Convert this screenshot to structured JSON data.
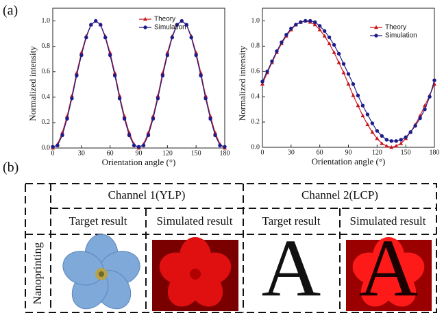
{
  "panel_labels": [
    "(a)",
    "(b)"
  ],
  "chart_data": [
    {
      "type": "line",
      "x_label": "Orientation angle (°)",
      "y_label": "Normalized intensity",
      "x": [
        0,
        5,
        10,
        15,
        20,
        25,
        30,
        35,
        40,
        45,
        50,
        55,
        60,
        65,
        70,
        75,
        80,
        85,
        90,
        95,
        100,
        105,
        110,
        115,
        120,
        125,
        130,
        135,
        140,
        145,
        150,
        155,
        160,
        165,
        170,
        175,
        180
      ],
      "series": [
        {
          "name": "Theory",
          "color": "#c8171e",
          "marker": "triangle",
          "values": [
            0,
            0.03,
            0.12,
            0.25,
            0.41,
            0.59,
            0.75,
            0.88,
            0.97,
            1,
            0.97,
            0.88,
            0.75,
            0.59,
            0.41,
            0.25,
            0.12,
            0.03,
            0,
            0.03,
            0.12,
            0.25,
            0.41,
            0.59,
            0.75,
            0.88,
            0.97,
            1,
            0.97,
            0.88,
            0.75,
            0.59,
            0.41,
            0.25,
            0.12,
            0.03,
            0
          ]
        },
        {
          "name": "Simulation",
          "color": "#1c1c8a",
          "marker": "circle",
          "values": [
            0.01,
            0.02,
            0.1,
            0.23,
            0.39,
            0.57,
            0.73,
            0.87,
            0.97,
            1,
            0.97,
            0.87,
            0.73,
            0.57,
            0.39,
            0.23,
            0.1,
            0.02,
            0.01,
            0.02,
            0.1,
            0.23,
            0.39,
            0.57,
            0.73,
            0.87,
            0.97,
            1,
            0.97,
            0.87,
            0.73,
            0.57,
            0.39,
            0.23,
            0.1,
            0.02,
            0.01
          ]
        }
      ],
      "xlim": [
        0,
        180
      ],
      "xticks": [
        0,
        30,
        60,
        90,
        120,
        150,
        180
      ],
      "ylim": [
        0,
        1.1
      ],
      "yticks": [
        {
          "value": 0,
          "label": "0.0"
        },
        0.2,
        0.4,
        0.6,
        0.8,
        {
          "value": 1,
          "label": "1.0"
        }
      ],
      "legend": "upper right"
    },
    {
      "type": "line",
      "x_label": "Orientation angle (°)",
      "y_label": "Normalized intensity",
      "x": [
        0,
        5,
        10,
        15,
        20,
        25,
        30,
        35,
        40,
        45,
        50,
        55,
        60,
        65,
        70,
        75,
        80,
        85,
        90,
        95,
        100,
        105,
        110,
        115,
        120,
        125,
        130,
        135,
        140,
        145,
        150,
        155,
        160,
        165,
        170,
        175,
        180
      ],
      "series": [
        {
          "name": "Theory",
          "color": "#c8171e",
          "marker": "triangle",
          "values": [
            0.5,
            0.59,
            0.67,
            0.75,
            0.82,
            0.88,
            0.93,
            0.97,
            0.99,
            1,
            0.99,
            0.97,
            0.93,
            0.88,
            0.82,
            0.75,
            0.67,
            0.59,
            0.5,
            0.41,
            0.33,
            0.25,
            0.18,
            0.12,
            0.07,
            0.03,
            0.01,
            0,
            0.01,
            0.03,
            0.07,
            0.12,
            0.18,
            0.25,
            0.33,
            0.41,
            0.5
          ]
        },
        {
          "name": "Simulation",
          "color": "#1c1c8a",
          "marker": "circle",
          "values": [
            0.52,
            0.6,
            0.68,
            0.76,
            0.83,
            0.89,
            0.94,
            0.97,
            0.99,
            1,
            1,
            0.99,
            0.96,
            0.92,
            0.87,
            0.81,
            0.74,
            0.66,
            0.58,
            0.5,
            0.41,
            0.33,
            0.26,
            0.19,
            0.13,
            0.09,
            0.06,
            0.05,
            0.05,
            0.06,
            0.08,
            0.12,
            0.17,
            0.23,
            0.3,
            0.4,
            0.53
          ]
        }
      ],
      "xlim": [
        0,
        180
      ],
      "xticks": [
        0,
        30,
        60,
        90,
        120,
        150,
        180
      ],
      "ylim": [
        0,
        1.1
      ],
      "yticks": [
        {
          "value": 0,
          "label": "0.0"
        },
        0.2,
        0.4,
        0.6,
        0.8,
        {
          "value": 1,
          "label": "1.0"
        }
      ],
      "legend": "upper right"
    }
  ],
  "table": {
    "channels": [
      "Channel 1(YLP)",
      "Channel 2(LCP)"
    ],
    "columns": [
      "Target result",
      "Simulated result",
      "Target result",
      "Simulated result"
    ],
    "row_label": "Nanoprinting",
    "letter": "A"
  }
}
